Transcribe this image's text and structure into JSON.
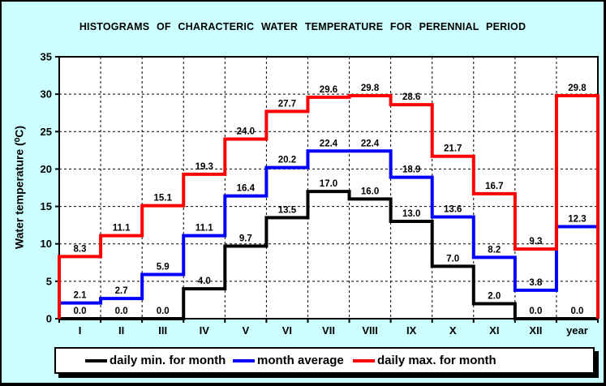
{
  "window": {
    "background": "#ccffff",
    "border_color": "#000000"
  },
  "title": "HISTOGRAMS OF CHARACTERIC WATER TEMPERATURE FOR PERENNIAL PERIOD",
  "y_axis_label": "Water temperature (⁰C)",
  "chart_data": {
    "type": "line",
    "subtype": "step-histogram",
    "title": "HISTOGRAMS OF CHARACTERIC WATER TEMPERATURE FOR PERENNIAL PERIOD",
    "xlabel": "",
    "ylabel": "Water temperature (⁰C)",
    "categories": [
      "I",
      "II",
      "III",
      "IV",
      "V",
      "VI",
      "VII",
      "VIII",
      "IX",
      "X",
      "XI",
      "XII",
      "year"
    ],
    "series": [
      {
        "name": "daily min. for month",
        "color": "#000000",
        "values": [
          0.0,
          0.0,
          0.0,
          4.0,
          9.7,
          13.5,
          17.0,
          16.0,
          13.0,
          7.0,
          2.0,
          0.0,
          0.0
        ]
      },
      {
        "name": "month average",
        "color": "#0000ff",
        "values": [
          2.1,
          2.7,
          5.9,
          11.1,
          16.4,
          20.2,
          22.4,
          22.4,
          18.9,
          13.6,
          8.2,
          3.8,
          12.3
        ]
      },
      {
        "name": "daily max. for month",
        "color": "#ff0000",
        "values": [
          8.3,
          11.1,
          15.1,
          19.3,
          24.0,
          27.7,
          29.6,
          29.8,
          28.6,
          21.7,
          16.7,
          9.3,
          29.8
        ]
      }
    ],
    "ylim": [
      0,
      35
    ],
    "yticks": [
      0,
      5,
      10,
      15,
      20,
      25,
      30,
      35
    ],
    "grid": true,
    "gridline_style": "dashed",
    "plot_background": "#ffffff",
    "label_color": "#000000",
    "legend_position": "bottom"
  },
  "legend": {
    "items": [
      {
        "label": "daily min. for month",
        "color": "#000000"
      },
      {
        "label": "month average",
        "color": "#0000ff"
      },
      {
        "label": "daily max. for month",
        "color": "#ff0000"
      }
    ]
  }
}
